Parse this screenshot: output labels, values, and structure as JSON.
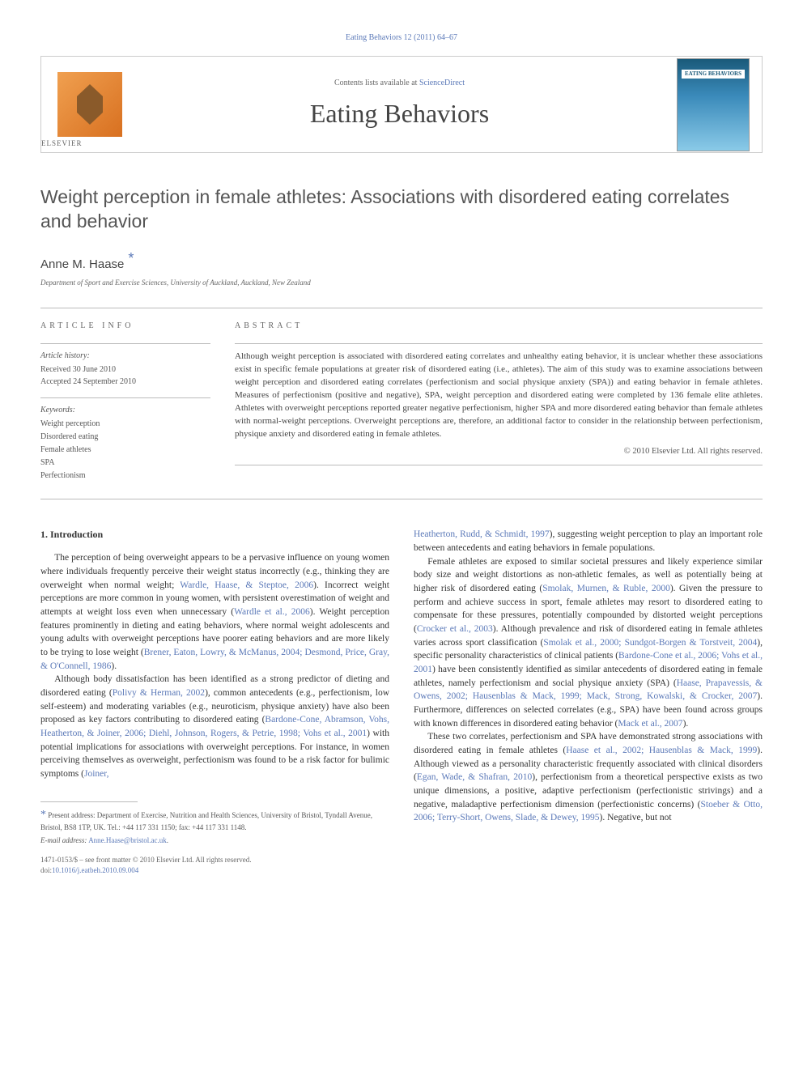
{
  "header": {
    "journal_ref": "Eating Behaviors 12 (2011) 64–67",
    "contents_line_pre": "Contents lists available at ",
    "contents_line_link": "ScienceDirect",
    "journal_title": "Eating Behaviors",
    "cover_label": "EATING BEHAVIORS"
  },
  "article": {
    "title": "Weight perception in female athletes: Associations with disordered eating correlates and behavior",
    "author": "Anne M. Haase",
    "affiliation": "Department of Sport and Exercise Sciences, University of Auckland, Auckland, New Zealand"
  },
  "info": {
    "heading": "ARTICLE INFO",
    "history_label": "Article history:",
    "received": "Received 30 June 2010",
    "accepted": "Accepted 24 September 2010",
    "keywords_label": "Keywords:",
    "keywords": [
      "Weight perception",
      "Disordered eating",
      "Female athletes",
      "SPA",
      "Perfectionism"
    ]
  },
  "abstract": {
    "heading": "ABSTRACT",
    "text": "Although weight perception is associated with disordered eating correlates and unhealthy eating behavior, it is unclear whether these associations exist in specific female populations at greater risk of disordered eating (i.e., athletes). The aim of this study was to examine associations between weight perception and disordered eating correlates (perfectionism and social physique anxiety (SPA)) and eating behavior in female athletes. Measures of perfectionism (positive and negative), SPA, weight perception and disordered eating were completed by 136 female elite athletes. Athletes with overweight perceptions reported greater negative perfectionism, higher SPA and more disordered eating behavior than female athletes with normal-weight perceptions. Overweight perceptions are, therefore, an additional factor to consider in the relationship between perfectionism, physique anxiety and disordered eating in female athletes.",
    "copyright": "© 2010 Elsevier Ltd. All rights reserved."
  },
  "body": {
    "intro_heading": "1. Introduction",
    "col1_parts": [
      {
        "t": "The perception of being overweight appears to be a pervasive influence on young women where individuals frequently perceive their weight status incorrectly (e.g., thinking they are overweight when normal weight; ",
        "c": false
      },
      {
        "t": "Wardle, Haase, & Steptoe, 2006",
        "c": true
      },
      {
        "t": "). Incorrect weight perceptions are more common in young women, with persistent overestimation of weight and attempts at weight loss even when unnecessary (",
        "c": false
      },
      {
        "t": "Wardle et al., 2006",
        "c": true
      },
      {
        "t": "). Weight perception features prominently in dieting and eating behaviors, where normal weight adolescents and young adults with overweight perceptions have poorer eating behaviors and are more likely to be trying to lose weight (",
        "c": false
      },
      {
        "t": "Brener, Eaton, Lowry, & McManus, 2004; Desmond, Price, Gray, & O'Connell, 1986",
        "c": true
      },
      {
        "t": ").",
        "c": false
      }
    ],
    "col1_para2_parts": [
      {
        "t": "Although body dissatisfaction has been identified as a strong predictor of dieting and disordered eating (",
        "c": false
      },
      {
        "t": "Polivy & Herman, 2002",
        "c": true
      },
      {
        "t": "), common antecedents (e.g., perfectionism, low self-esteem) and moderating variables (e.g., neuroticism, physique anxiety) have also been proposed as key factors contributing to disordered eating (",
        "c": false
      },
      {
        "t": "Bardone-Cone, Abramson, Vohs, Heatherton, & Joiner, 2006; Diehl, Johnson, Rogers, & Petrie, 1998; Vohs et al., 2001",
        "c": true
      },
      {
        "t": ") with potential implications for associations with overweight perceptions. For instance, in women perceiving themselves as overweight, perfectionism was found to be a risk factor for bulimic symptoms (",
        "c": false
      },
      {
        "t": "Joiner,",
        "c": true
      }
    ],
    "col2_top_parts": [
      {
        "t": "Heatherton, Rudd, & Schmidt, 1997",
        "c": true
      },
      {
        "t": "), suggesting weight perception to play an important role between antecedents and eating behaviors in female populations.",
        "c": false
      }
    ],
    "col2_para2_parts": [
      {
        "t": "Female athletes are exposed to similar societal pressures and likely experience similar body size and weight distortions as non-athletic females, as well as potentially being at higher risk of disordered eating (",
        "c": false
      },
      {
        "t": "Smolak, Murnen, & Ruble, 2000",
        "c": true
      },
      {
        "t": "). Given the pressure to perform and achieve success in sport, female athletes may resort to disordered eating to compensate for these pressures, potentially compounded by distorted weight perceptions (",
        "c": false
      },
      {
        "t": "Crocker et al., 2003",
        "c": true
      },
      {
        "t": "). Although prevalence and risk of disordered eating in female athletes varies across sport classification (",
        "c": false
      },
      {
        "t": "Smolak et al., 2000; Sundgot-Borgen & Torstveit, 2004",
        "c": true
      },
      {
        "t": "), specific personality characteristics of clinical patients (",
        "c": false
      },
      {
        "t": "Bardone-Cone et al., 2006; Vohs et al., 2001",
        "c": true
      },
      {
        "t": ") have been consistently identified as similar antecedents of disordered eating in female athletes, namely perfectionism and social physique anxiety (SPA) (",
        "c": false
      },
      {
        "t": "Haase, Prapavessis, & Owens, 2002; Hausenblas & Mack, 1999; Mack, Strong, Kowalski, & Crocker, 2007",
        "c": true
      },
      {
        "t": "). Furthermore, differences on selected correlates (e.g., SPA) have been found across groups with known differences in disordered eating behavior (",
        "c": false
      },
      {
        "t": "Mack et al., 2007",
        "c": true
      },
      {
        "t": ").",
        "c": false
      }
    ],
    "col2_para3_parts": [
      {
        "t": "These two correlates, perfectionism and SPA have demonstrated strong associations with disordered eating in female athletes (",
        "c": false
      },
      {
        "t": "Haase et al., 2002; Hausenblas & Mack, 1999",
        "c": true
      },
      {
        "t": "). Although viewed as a personality characteristic frequently associated with clinical disorders (",
        "c": false
      },
      {
        "t": "Egan, Wade, & Shafran, 2010",
        "c": true
      },
      {
        "t": "), perfectionism from a theoretical perspective exists as two unique dimensions, a positive, adaptive perfectionism (perfectionistic strivings) and a negative, maladaptive perfectionism dimension (perfectionistic concerns) (",
        "c": false
      },
      {
        "t": "Stoeber & Otto, 2006; Terry-Short, Owens, Slade, & Dewey, 1995",
        "c": true
      },
      {
        "t": "). Negative, but not",
        "c": false
      }
    ]
  },
  "footnotes": {
    "address_pre": "Present address: Department of Exercise, Nutrition and Health Sciences, University of Bristol, Tyndall Avenue, Bristol, BS8 1TP, UK. Tel.: +44 117 331 1150; fax: +44 117 331 1148.",
    "email_label": "E-mail address:",
    "email": "Anne.Haase@bristol.ac.uk",
    "issn_line": "1471-0153/$ – see front matter © 2010 Elsevier Ltd. All rights reserved.",
    "doi_label": "doi:",
    "doi": "10.1016/j.eatbeh.2010.09.004"
  }
}
